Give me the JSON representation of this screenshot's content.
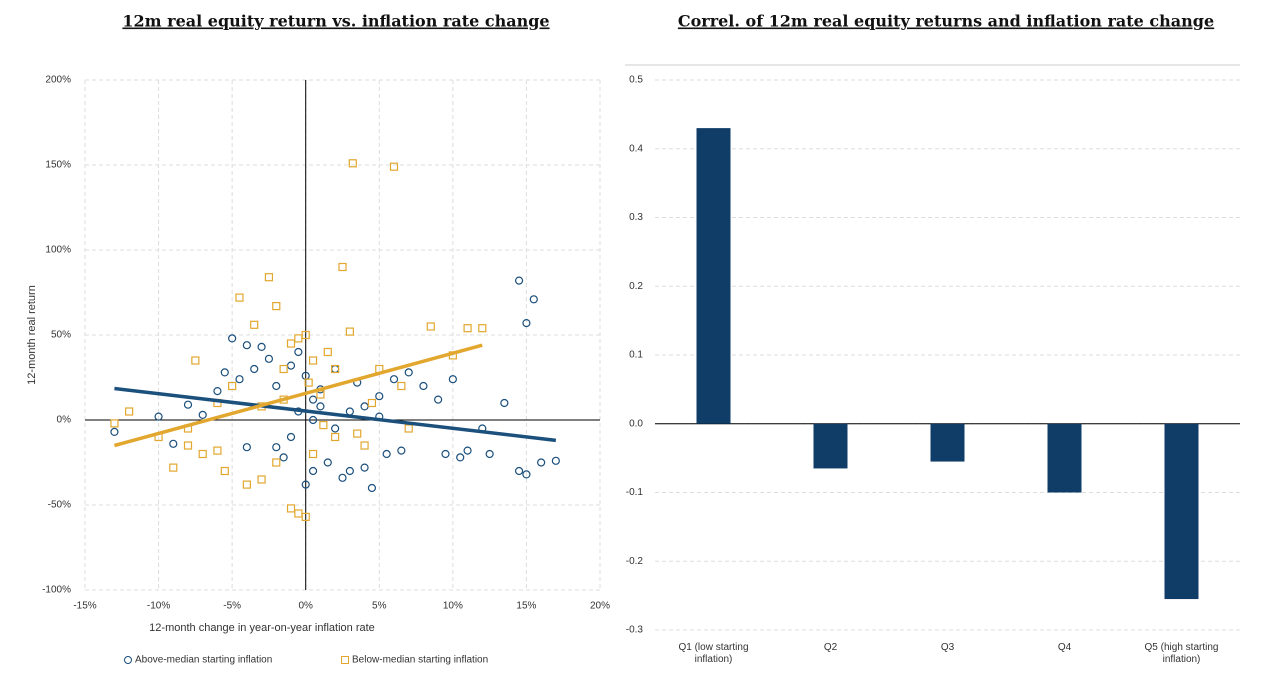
{
  "chart_data": [
    {
      "type": "scatter",
      "title": "12m real equity return vs. inflation rate change",
      "x_label": "12-month change in year-on-year inflation rate",
      "y_label": "12-month real return",
      "xlim": [
        -15,
        20
      ],
      "xticks": [
        {
          "value": -15,
          "label": "-15%"
        },
        {
          "value": -10,
          "label": "-10%"
        },
        {
          "value": -5,
          "label": "-5%"
        },
        {
          "value": 0,
          "label": "0%"
        },
        {
          "value": 5,
          "label": "5%"
        },
        {
          "value": 10,
          "label": "10%"
        },
        {
          "value": 15,
          "label": "15%"
        },
        {
          "value": 20,
          "label": "20%"
        }
      ],
      "ylim": [
        -100,
        200
      ],
      "yticks": [
        {
          "value": -100,
          "label": "-100%"
        },
        {
          "value": -50,
          "label": "-50%"
        },
        {
          "value": 0,
          "label": "0%"
        },
        {
          "value": 50,
          "label": "50%"
        },
        {
          "value": 100,
          "label": "100%"
        },
        {
          "value": 150,
          "label": "150%"
        },
        {
          "value": 200,
          "label": "200%"
        }
      ],
      "grid": true,
      "legend": "bottom",
      "series": [
        {
          "name": "Above-median starting inflation",
          "color": "#1b4f7c",
          "marker": "circle",
          "x": [
            -13,
            -10,
            -9,
            -8,
            -7,
            -6,
            -5.5,
            -5,
            -4.5,
            -4,
            -4,
            -3.5,
            -3,
            -2.5,
            -2,
            -2,
            -1.5,
            -1,
            -1,
            -0.5,
            0,
            0,
            0.5,
            0.5,
            1,
            1.5,
            2,
            2.5,
            3,
            3,
            3.5,
            4,
            4.5,
            5,
            5.5,
            6,
            6.5,
            7,
            8,
            9,
            9.5,
            10,
            10.5,
            11,
            12,
            12.5,
            13.5,
            14.5,
            15,
            15.5,
            14.5,
            15,
            16,
            17,
            0.5,
            1,
            -0.5,
            2,
            4,
            5
          ],
          "y": [
            -7,
            2,
            -14,
            9,
            3,
            17,
            28,
            48,
            24,
            44,
            -16,
            30,
            43,
            36,
            -16,
            20,
            -22,
            32,
            -10,
            40,
            -38,
            26,
            -30,
            12,
            18,
            -25,
            30,
            -34,
            5,
            -30,
            22,
            -28,
            -40,
            14,
            -20,
            24,
            -18,
            28,
            20,
            12,
            -20,
            24,
            -22,
            -18,
            -5,
            -20,
            10,
            82,
            57,
            71,
            -30,
            -32,
            -25,
            -24,
            0,
            8,
            5,
            -5,
            8,
            2
          ],
          "trendline": {
            "x": [
              -13,
              17
            ],
            "y": [
              18.5,
              -12
            ]
          }
        },
        {
          "name": "Below-median starting inflation",
          "color": "#e2a72e",
          "marker": "square",
          "x": [
            -13,
            -12,
            -10,
            -9,
            -8,
            -7.5,
            -7,
            -6,
            -5.5,
            -5,
            -4.5,
            -4,
            -3.5,
            -3,
            -2.5,
            -2,
            -2,
            -1.5,
            -1,
            -1,
            -0.5,
            0,
            0,
            0.5,
            0.5,
            1,
            1.5,
            2,
            2.5,
            3,
            3.2,
            4,
            4.5,
            6,
            5,
            6.5,
            7,
            8.5,
            10,
            11,
            12,
            -1.5,
            0.2,
            1.2,
            -3,
            2,
            -6,
            -8,
            3.5,
            -0.5
          ],
          "y": [
            -2,
            5,
            -10,
            -28,
            -15,
            35,
            -20,
            10,
            -30,
            20,
            72,
            -38,
            56,
            -35,
            84,
            67,
            -25,
            30,
            -52,
            45,
            -55,
            -57,
            50,
            35,
            -20,
            15,
            40,
            -10,
            90,
            52,
            151,
            -15,
            10,
            149,
            30,
            20,
            -5,
            55,
            38,
            54,
            54,
            12,
            22,
            -3,
            8,
            30,
            -18,
            -5,
            -8,
            48
          ],
          "trendline": {
            "x": [
              -13,
              12
            ],
            "y": [
              -15,
              44
            ]
          }
        }
      ]
    },
    {
      "type": "bar",
      "title": "Correl. of 12m real equity returns and inflation rate change",
      "categories": [
        "Q1 (low starting inflation)",
        "Q2",
        "Q3",
        "Q4",
        "Q5 (high starting inflation)"
      ],
      "values": [
        0.43,
        -0.065,
        -0.055,
        -0.1,
        -0.255
      ],
      "color": "#0f3d68",
      "ylim": [
        -0.3,
        0.5
      ],
      "yticks": [
        -0.3,
        -0.2,
        -0.1,
        {
          "value": 0,
          "label": "0.0"
        },
        0.1,
        0.2,
        0.3,
        0.4,
        0.5
      ],
      "grid": true
    }
  ]
}
